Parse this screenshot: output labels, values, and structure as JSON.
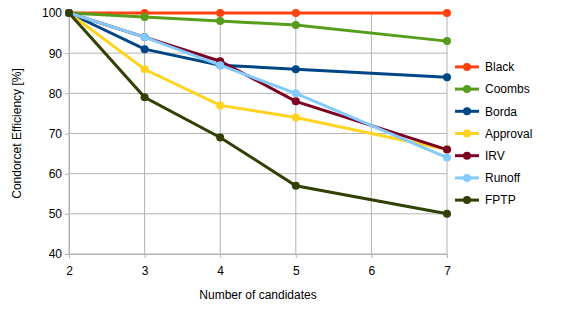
{
  "chart_data": {
    "type": "line",
    "x_label": "Number of candidates",
    "y_label": "Condorcet Efficiency [%]",
    "x": [
      2,
      3,
      4,
      5,
      7
    ],
    "xlim": [
      2,
      7
    ],
    "xticks": [
      2,
      3,
      4,
      5,
      6,
      7
    ],
    "ylim": [
      40,
      100
    ],
    "yticks": [
      40,
      50,
      60,
      70,
      80,
      90,
      100
    ],
    "grid": true,
    "legend": "right",
    "marker": "circle",
    "series": [
      {
        "name": "Black",
        "color": "#ff420e",
        "values": [
          100,
          100,
          100,
          100,
          100
        ]
      },
      {
        "name": "Coombs",
        "color": "#579d1c",
        "values": [
          100,
          99,
          98,
          97,
          93
        ]
      },
      {
        "name": "Borda",
        "color": "#004586",
        "values": [
          100,
          91,
          87,
          86,
          84
        ]
      },
      {
        "name": "Approval",
        "color": "#ffd320",
        "values": [
          100,
          86,
          77,
          74,
          66
        ]
      },
      {
        "name": "IRV",
        "color": "#7e0021",
        "values": [
          100,
          94,
          88,
          78,
          66
        ]
      },
      {
        "name": "Runoff",
        "color": "#83caff",
        "values": [
          100,
          94,
          87,
          80,
          64
        ]
      },
      {
        "name": "FPTP",
        "color": "#314004",
        "values": [
          100,
          79,
          69,
          57,
          50
        ]
      }
    ]
  }
}
